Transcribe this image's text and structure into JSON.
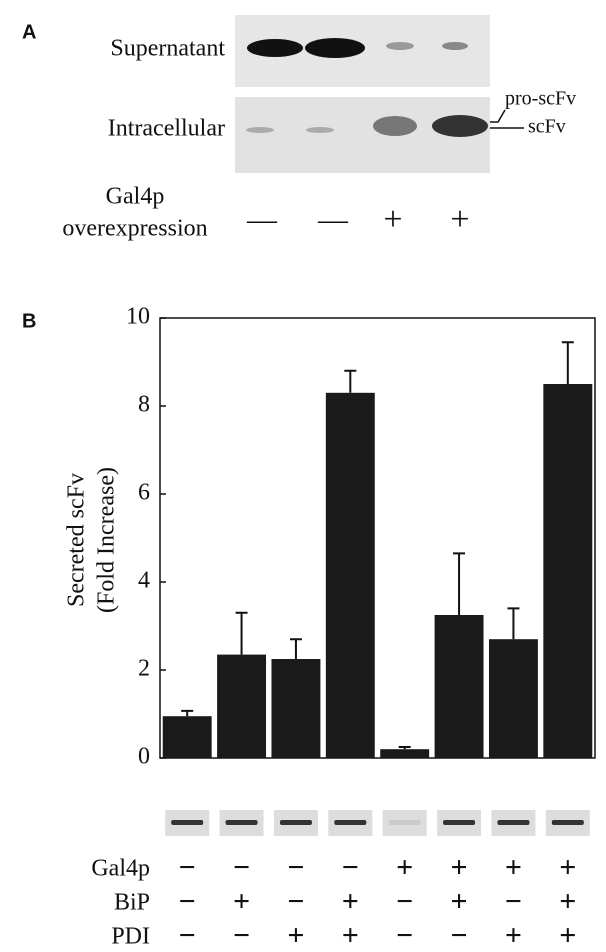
{
  "panel_a": {
    "label": "A",
    "rows": [
      "Supernatant",
      "Intracellular"
    ],
    "band_labels": [
      "pro-scFv",
      "scFv"
    ],
    "condition_label": [
      "Gal4p",
      "overexpression"
    ],
    "conditions": [
      "—",
      "—",
      "+",
      "+"
    ]
  },
  "chart_data": {
    "type": "bar",
    "panel_label": "B",
    "ylabel": [
      "Secreted scFv",
      "(Fold Increase)"
    ],
    "values": [
      0.95,
      2.35,
      2.25,
      8.3,
      0.2,
      3.25,
      2.7,
      8.5
    ],
    "errors": [
      0.12,
      0.95,
      0.45,
      0.5,
      0.05,
      1.4,
      0.7,
      0.95
    ],
    "color": "#1a1a1a",
    "ylim": [
      0,
      10
    ],
    "yticks": [
      0,
      2,
      4,
      6,
      8,
      10
    ],
    "conditions": [
      {
        "name": "Gal4p",
        "signs": [
          "−",
          "−",
          "−",
          "−",
          "+",
          "+",
          "+",
          "+"
        ]
      },
      {
        "name": "BiP",
        "signs": [
          "−",
          "+",
          "−",
          "+",
          "−",
          "+",
          "−",
          "+"
        ]
      },
      {
        "name": "PDI",
        "signs": [
          "−",
          "−",
          "+",
          "+",
          "−",
          "−",
          "+",
          "+"
        ]
      }
    ]
  }
}
